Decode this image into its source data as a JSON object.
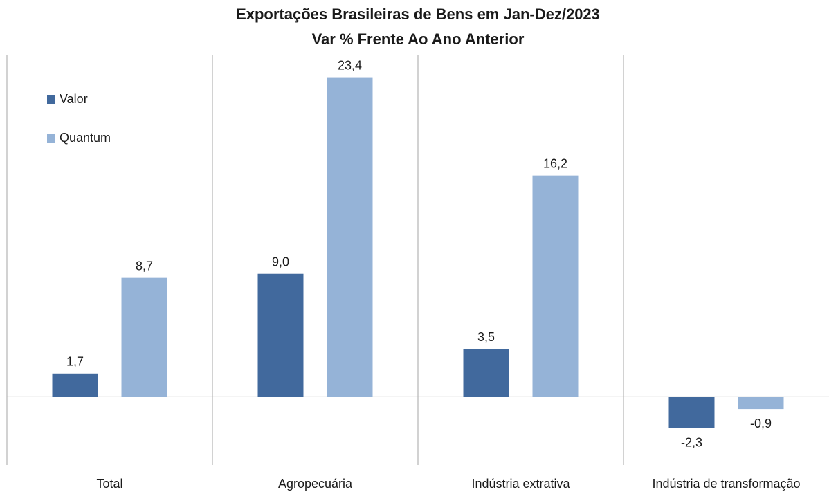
{
  "chart_data": {
    "type": "bar",
    "title": "Exportações Brasileiras de Bens em Jan-Dez/2023",
    "subtitle": "Var % Frente Ao Ano Anterior",
    "categories": [
      "Total",
      "Agropecuária",
      "Indústria extrativa",
      "Indústria de transformação"
    ],
    "series": [
      {
        "name": "Valor",
        "color": "#41699d",
        "values": [
          1.7,
          9.0,
          3.5,
          -2.3
        ],
        "value_labels": [
          "1,7",
          "9,0",
          "3,5",
          "-2,3"
        ]
      },
      {
        "name": "Quantum",
        "color": "#95b3d7",
        "values": [
          8.7,
          23.4,
          16.2,
          -0.9
        ],
        "value_labels": [
          "8,7",
          "23,4",
          "16,2",
          "-0,9"
        ]
      }
    ],
    "ylim": [
      -5,
      25
    ],
    "legend": "upper left"
  }
}
